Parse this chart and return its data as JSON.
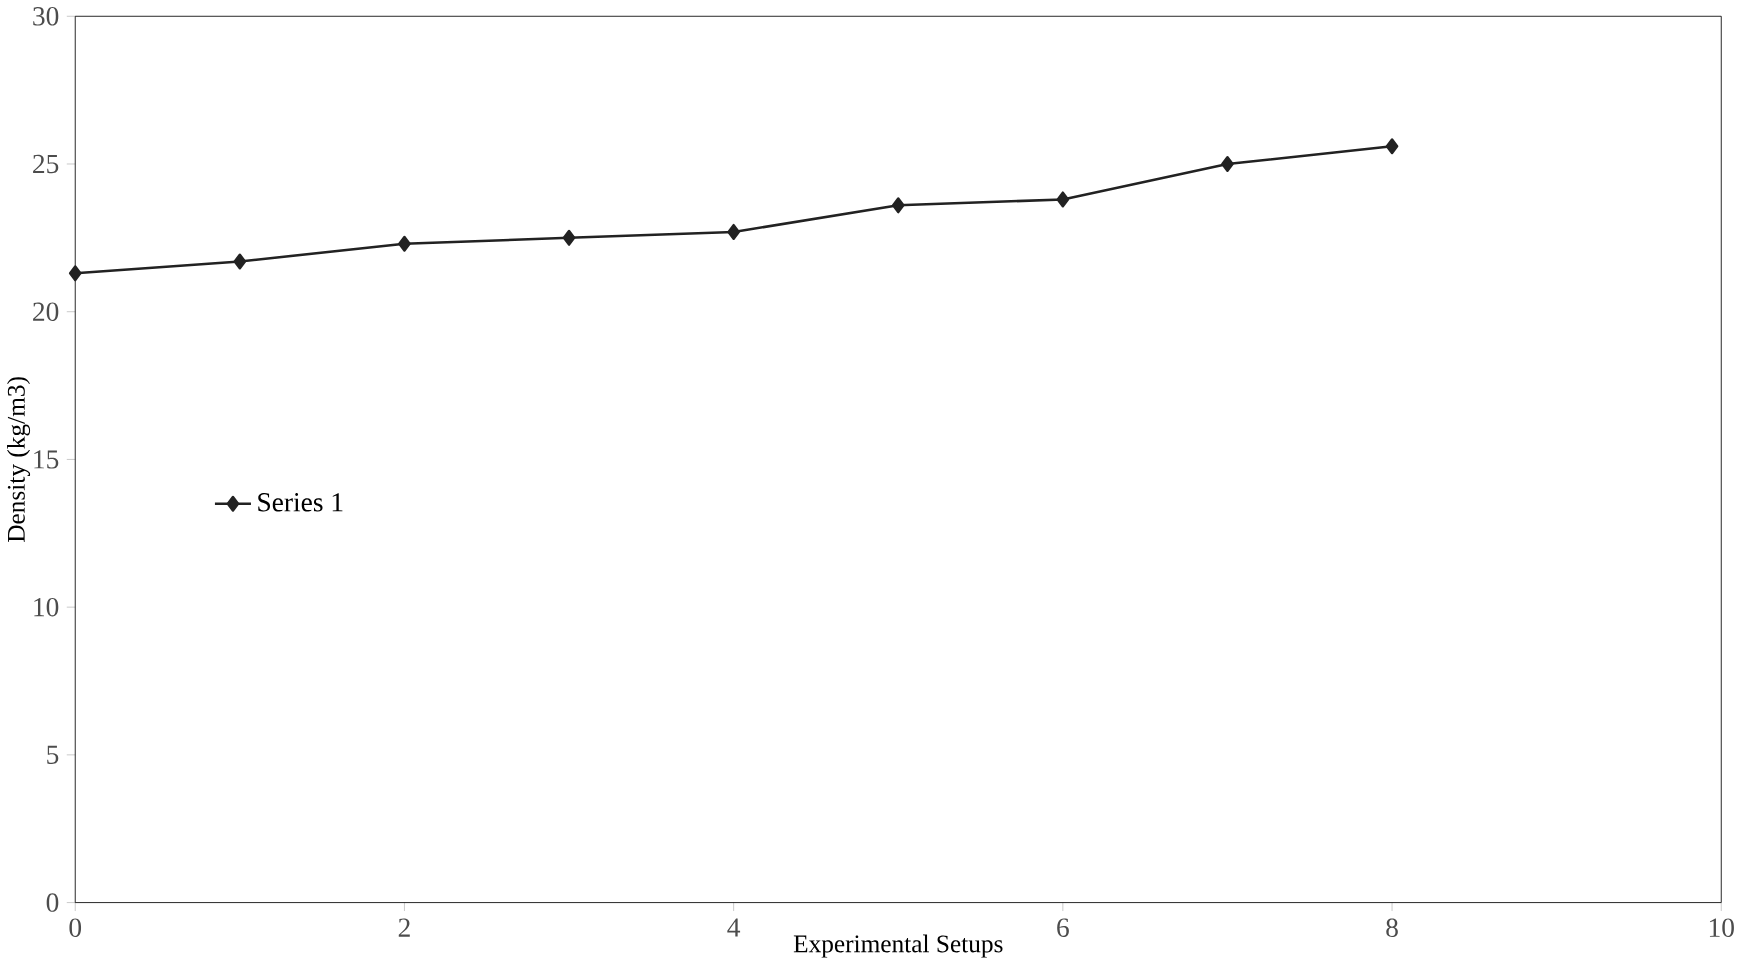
{
  "chart_data": {
    "type": "line",
    "xlabel": "Experimental Setups",
    "ylabel": "Density (kg/m3)",
    "x": [
      0,
      1,
      2,
      3,
      4,
      5,
      6,
      7,
      8
    ],
    "series": [
      {
        "name": "Series 1",
        "color": "#222222",
        "values": [
          21.3,
          21.7,
          22.3,
          22.5,
          22.7,
          23.6,
          23.8,
          25.0,
          25.6
        ]
      }
    ],
    "xlim": [
      0,
      10
    ],
    "ylim": [
      0,
      30
    ],
    "xticks": [
      0,
      2,
      4,
      6,
      8,
      10
    ],
    "yticks": [
      0,
      5,
      10,
      15,
      20,
      25,
      30
    ],
    "legend": "left",
    "marker": "diamond",
    "line_style": "solid",
    "grid": false
  }
}
